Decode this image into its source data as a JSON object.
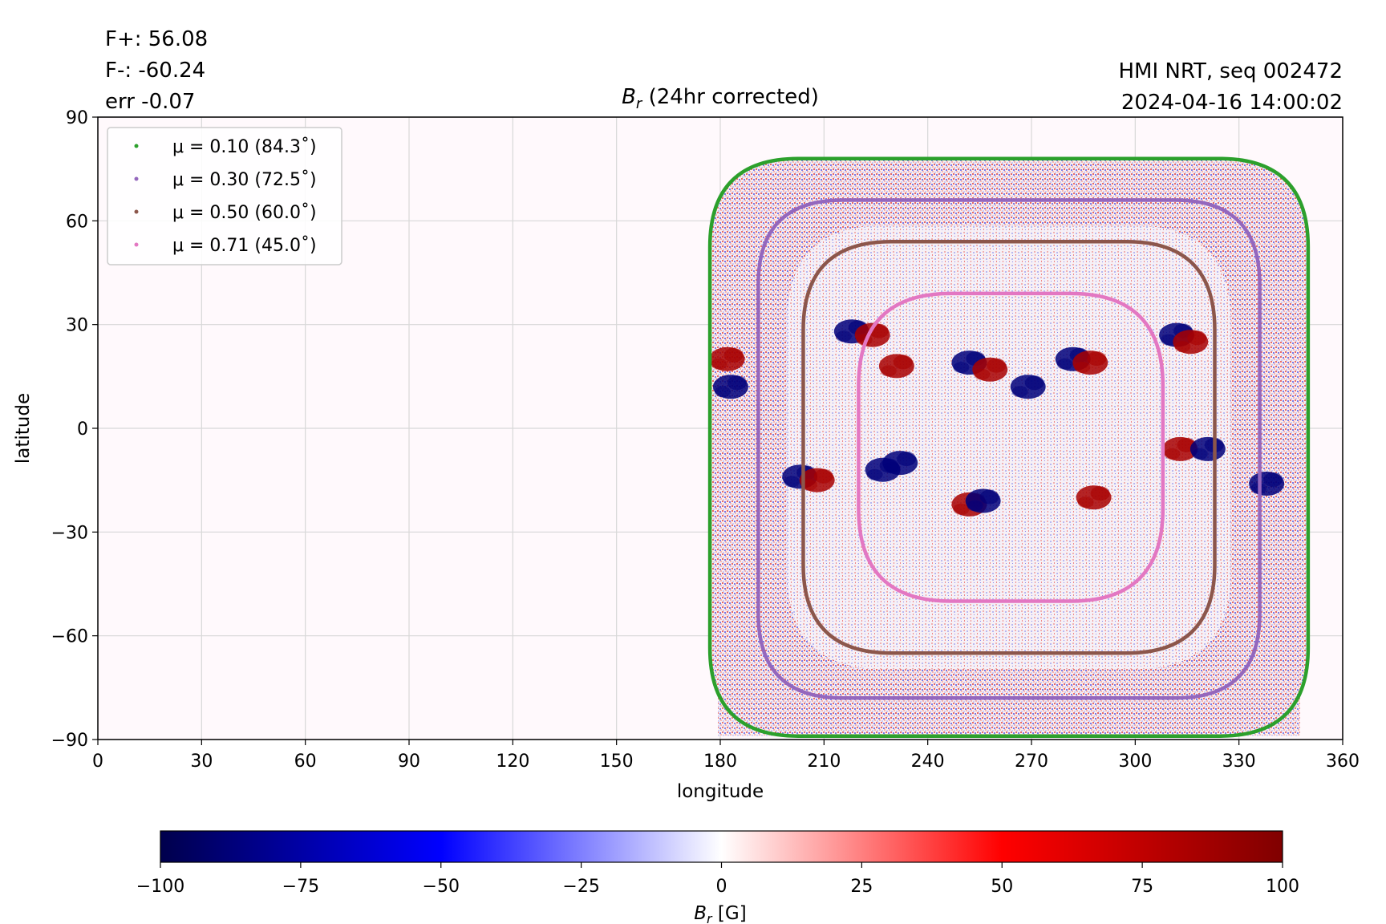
{
  "header": {
    "flux_pos": "F+: 56.08",
    "flux_neg": "F-: -60.24",
    "flux_err": "err -0.07",
    "source": "HMI NRT, seq 002472",
    "timestamp": "2024-04-16 14:00:02"
  },
  "chart_data": {
    "type": "heatmap",
    "title_symbol": "B",
    "title_subscript": "r",
    "title_rest": " (24hr corrected)",
    "xlabel": "longitude",
    "ylabel": "latitude",
    "xlim": [
      0,
      360
    ],
    "ylim": [
      -90,
      90
    ],
    "x_ticks": [
      0,
      30,
      60,
      90,
      120,
      150,
      180,
      210,
      240,
      270,
      300,
      330,
      360
    ],
    "y_ticks": [
      90,
      60,
      30,
      0,
      -30,
      -60,
      -90
    ],
    "y_tick_labels": [
      "90",
      "60",
      "30",
      "0",
      "−30",
      "−60",
      "−90"
    ],
    "grid": true,
    "legend_position": "top-left",
    "legend": [
      {
        "label": "μ = 0.10 (84.3˚)",
        "color": "#2ca02c"
      },
      {
        "label": "μ = 0.30 (72.5˚)",
        "color": "#9467bd"
      },
      {
        "label": "μ = 0.50 (60.0˚)",
        "color": "#8c564b"
      },
      {
        "label": "μ = 0.71 (45.0˚)",
        "color": "#e377c2"
      }
    ],
    "mu_contours": [
      {
        "mu": 0.1,
        "color": "#2ca02c",
        "lon_min": 177,
        "lon_max": 350,
        "lat_min": -89,
        "lat_max": 78
      },
      {
        "mu": 0.3,
        "color": "#9467bd",
        "lon_min": 191,
        "lon_max": 336,
        "lat_min": -78,
        "lat_max": 66
      },
      {
        "mu": 0.5,
        "color": "#8c564b",
        "lon_min": 204,
        "lon_max": 323,
        "lat_min": -65,
        "lat_max": 54
      },
      {
        "mu": 0.71,
        "color": "#e377c2",
        "lon_min": 220,
        "lon_max": 308,
        "lat_min": -50,
        "lat_max": 39
      }
    ],
    "active_regions": [
      {
        "lon": 182,
        "lat": 20,
        "polarity": "positive"
      },
      {
        "lon": 183,
        "lat": 12,
        "polarity": "negative"
      },
      {
        "lon": 218,
        "lat": 28,
        "polarity": "negative"
      },
      {
        "lon": 224,
        "lat": 27,
        "polarity": "positive"
      },
      {
        "lon": 231,
        "lat": 18,
        "polarity": "positive"
      },
      {
        "lon": 252,
        "lat": 19,
        "polarity": "negative"
      },
      {
        "lon": 258,
        "lat": 17,
        "polarity": "positive"
      },
      {
        "lon": 269,
        "lat": 12,
        "polarity": "negative"
      },
      {
        "lon": 282,
        "lat": 20,
        "polarity": "negative"
      },
      {
        "lon": 287,
        "lat": 19,
        "polarity": "positive"
      },
      {
        "lon": 312,
        "lat": 27,
        "polarity": "negative"
      },
      {
        "lon": 316,
        "lat": 25,
        "polarity": "positive"
      },
      {
        "lon": 203,
        "lat": -14,
        "polarity": "negative"
      },
      {
        "lon": 208,
        "lat": -15,
        "polarity": "positive"
      },
      {
        "lon": 227,
        "lat": -12,
        "polarity": "negative"
      },
      {
        "lon": 232,
        "lat": -10,
        "polarity": "negative"
      },
      {
        "lon": 252,
        "lat": -22,
        "polarity": "positive"
      },
      {
        "lon": 256,
        "lat": -21,
        "polarity": "negative"
      },
      {
        "lon": 288,
        "lat": -20,
        "polarity": "positive"
      },
      {
        "lon": 313,
        "lat": -6,
        "polarity": "positive"
      },
      {
        "lon": 321,
        "lat": -6,
        "polarity": "negative"
      },
      {
        "lon": 338,
        "lat": -16,
        "polarity": "negative"
      }
    ],
    "colorbar": {
      "ticks": [
        -100,
        -75,
        -50,
        -25,
        0,
        25,
        50,
        75,
        100
      ],
      "tick_labels": [
        "−100",
        "−75",
        "−50",
        "−25",
        "0",
        "25",
        "50",
        "75",
        "100"
      ],
      "range": [
        -100,
        100
      ],
      "colors": [
        "#00004c",
        "#0000ff",
        "#ffffff",
        "#ff0000",
        "#800000"
      ],
      "label_symbol": "B",
      "label_subscript": "r",
      "label_rest": " [G]"
    }
  }
}
